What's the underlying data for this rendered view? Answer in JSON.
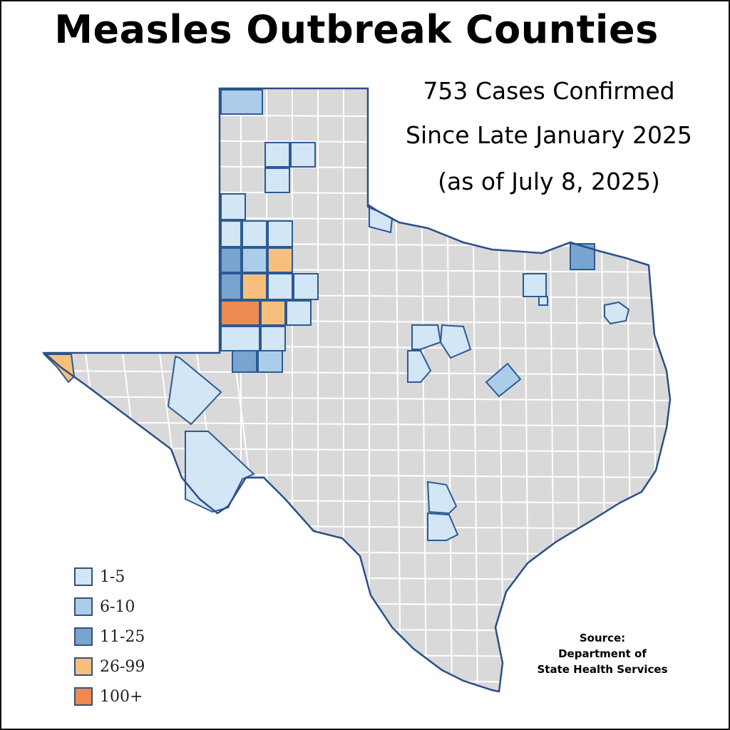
{
  "title": "Measles Outbreak Counties",
  "subtitle_lines": [
    "753 Cases Confirmed",
    "Since Late January 2025",
    "(as of July 8, 2025)"
  ],
  "legend": [
    {
      "label": "1-5",
      "color": "#d2e6f6"
    },
    {
      "label": "6-10",
      "color": "#abcdea"
    },
    {
      "label": "11-25",
      "color": "#7aa4d0"
    },
    {
      "label": "26-99",
      "color": "#f6c07c"
    },
    {
      "label": "100+",
      "color": "#ec8a4f"
    }
  ],
  "source": {
    "line1": "Source:",
    "line2": "Department of",
    "line3": "State Health Services"
  },
  "colors": {
    "state_fill": "#d9d9d9",
    "state_border": "#2b4f87",
    "county_lines": "#ffffff"
  }
}
